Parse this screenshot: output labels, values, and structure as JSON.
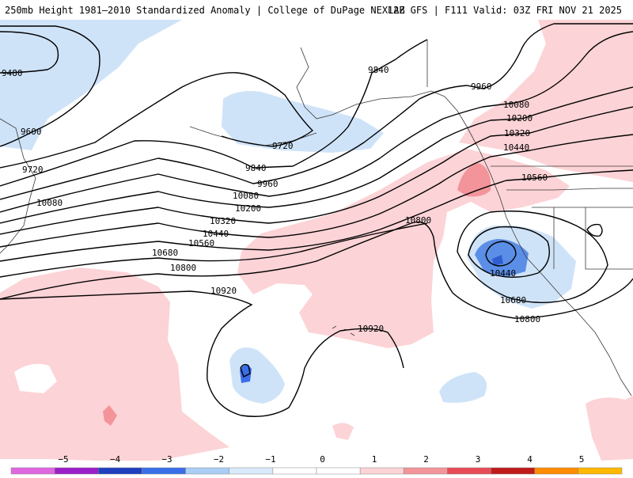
{
  "header": {
    "left": "250mb Height 1981–2010 Standardized Anomaly | College of DuPage NEXLAB",
    "right": "12Z GFS | F111 Valid: 03Z FRI NOV 21 2025"
  },
  "contours": {
    "labels": [
      "9480",
      "9600",
      "9720",
      "9720",
      "9840",
      "9840",
      "9960",
      "9960",
      "10080",
      "10080",
      "10080",
      "10200",
      "10200",
      "10320",
      "10320",
      "10440",
      "10440",
      "10440",
      "10560",
      "10560",
      "10680",
      "10680",
      "10800",
      "10800",
      "10800",
      "10920",
      "10920"
    ]
  },
  "colorbar": {
    "ticks": [
      "−5",
      "−4",
      "−3",
      "−2",
      "−1",
      "0",
      "1",
      "2",
      "3",
      "4",
      "5"
    ],
    "colors": [
      "#e066e0",
      "#9b1fc9",
      "#1f3fbf",
      "#3a6ee8",
      "#a9cdf5",
      "#d9eafc",
      "#ffffff",
      "#ffffff",
      "#fcd3d6",
      "#f3949a",
      "#e84b55",
      "#c01a1a",
      "#ff8c00",
      "#ffb800"
    ]
  }
}
